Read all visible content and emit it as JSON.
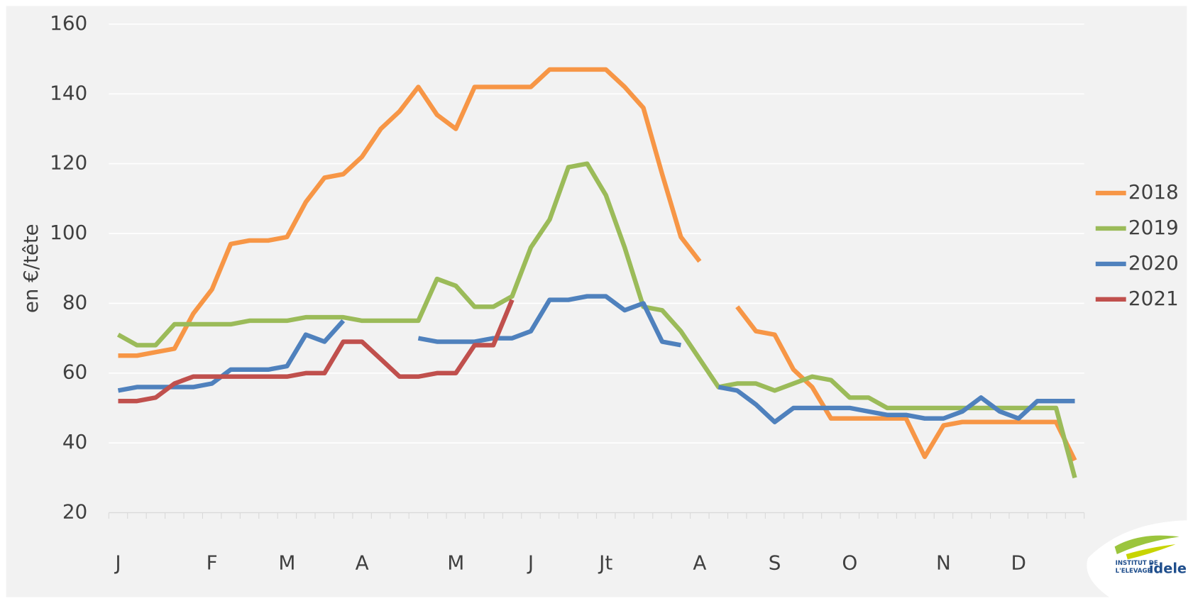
{
  "chart_data": {
    "type": "line",
    "y_label": "en €/tête",
    "categories": [
      "J",
      null,
      null,
      null,
      null,
      "F",
      null,
      null,
      null,
      "M",
      null,
      null,
      null,
      "A",
      null,
      null,
      null,
      null,
      "M",
      null,
      null,
      null,
      "J",
      null,
      null,
      null,
      "Jt",
      null,
      null,
      null,
      null,
      "A",
      null,
      null,
      null,
      "S",
      null,
      null,
      null,
      "O",
      null,
      null,
      null,
      null,
      "N",
      null,
      null,
      null,
      "D",
      null,
      null,
      null
    ],
    "series": [
      {
        "name": "2018",
        "color": "#f79646",
        "values": [
          65,
          65,
          66,
          67,
          77,
          84,
          97,
          98,
          98,
          99,
          109,
          116,
          117,
          122,
          130,
          135,
          142,
          134,
          130,
          142,
          142,
          142,
          142,
          147,
          147,
          147,
          147,
          142,
          136,
          117,
          99,
          92,
          null,
          79,
          72,
          71,
          61,
          56,
          47,
          47,
          47,
          47,
          47,
          36,
          45,
          46,
          46,
          46,
          46,
          46,
          46,
          35
        ]
      },
      {
        "name": "2019",
        "color": "#9bbb59",
        "values": [
          71,
          68,
          68,
          74,
          74,
          74,
          74,
          75,
          75,
          75,
          76,
          76,
          76,
          75,
          75,
          75,
          75,
          87,
          85,
          79,
          79,
          82,
          96,
          104,
          119,
          120,
          111,
          96,
          79,
          78,
          72,
          64,
          56,
          57,
          57,
          55,
          57,
          59,
          58,
          53,
          53,
          50,
          50,
          50,
          50,
          50,
          50,
          50,
          50,
          50,
          50,
          30
        ]
      },
      {
        "name": "2020",
        "color": "#4f81bd",
        "values": [
          55,
          56,
          56,
          56,
          56,
          57,
          61,
          61,
          61,
          62,
          71,
          69,
          75,
          null,
          null,
          null,
          70,
          69,
          69,
          69,
          70,
          70,
          72,
          81,
          81,
          82,
          82,
          78,
          80,
          69,
          68,
          null,
          56,
          55,
          51,
          46,
          50,
          50,
          50,
          50,
          49,
          48,
          48,
          47,
          47,
          49,
          53,
          49,
          47,
          52,
          52,
          52
        ]
      },
      {
        "name": "2021",
        "color": "#c0504d",
        "values": [
          52,
          52,
          53,
          57,
          59,
          59,
          59,
          59,
          59,
          59,
          60,
          60,
          69,
          69,
          64,
          59,
          59,
          60,
          60,
          68,
          68,
          81,
          null,
          null,
          null,
          null,
          null,
          null,
          null,
          null,
          null,
          null,
          null,
          null,
          null,
          null,
          null,
          null,
          null,
          null,
          null,
          null,
          null,
          null,
          null,
          null,
          null,
          null,
          null,
          null,
          null,
          null
        ]
      }
    ],
    "ylim": [
      20,
      160
    ],
    "yticks": [
      20,
      40,
      60,
      80,
      100,
      120,
      140,
      160
    ],
    "grid": true,
    "legend": "right"
  },
  "logo": {
    "line1": "INSTITUT DE",
    "line2": "L'ELEVAGE",
    "brand": "idele"
  }
}
